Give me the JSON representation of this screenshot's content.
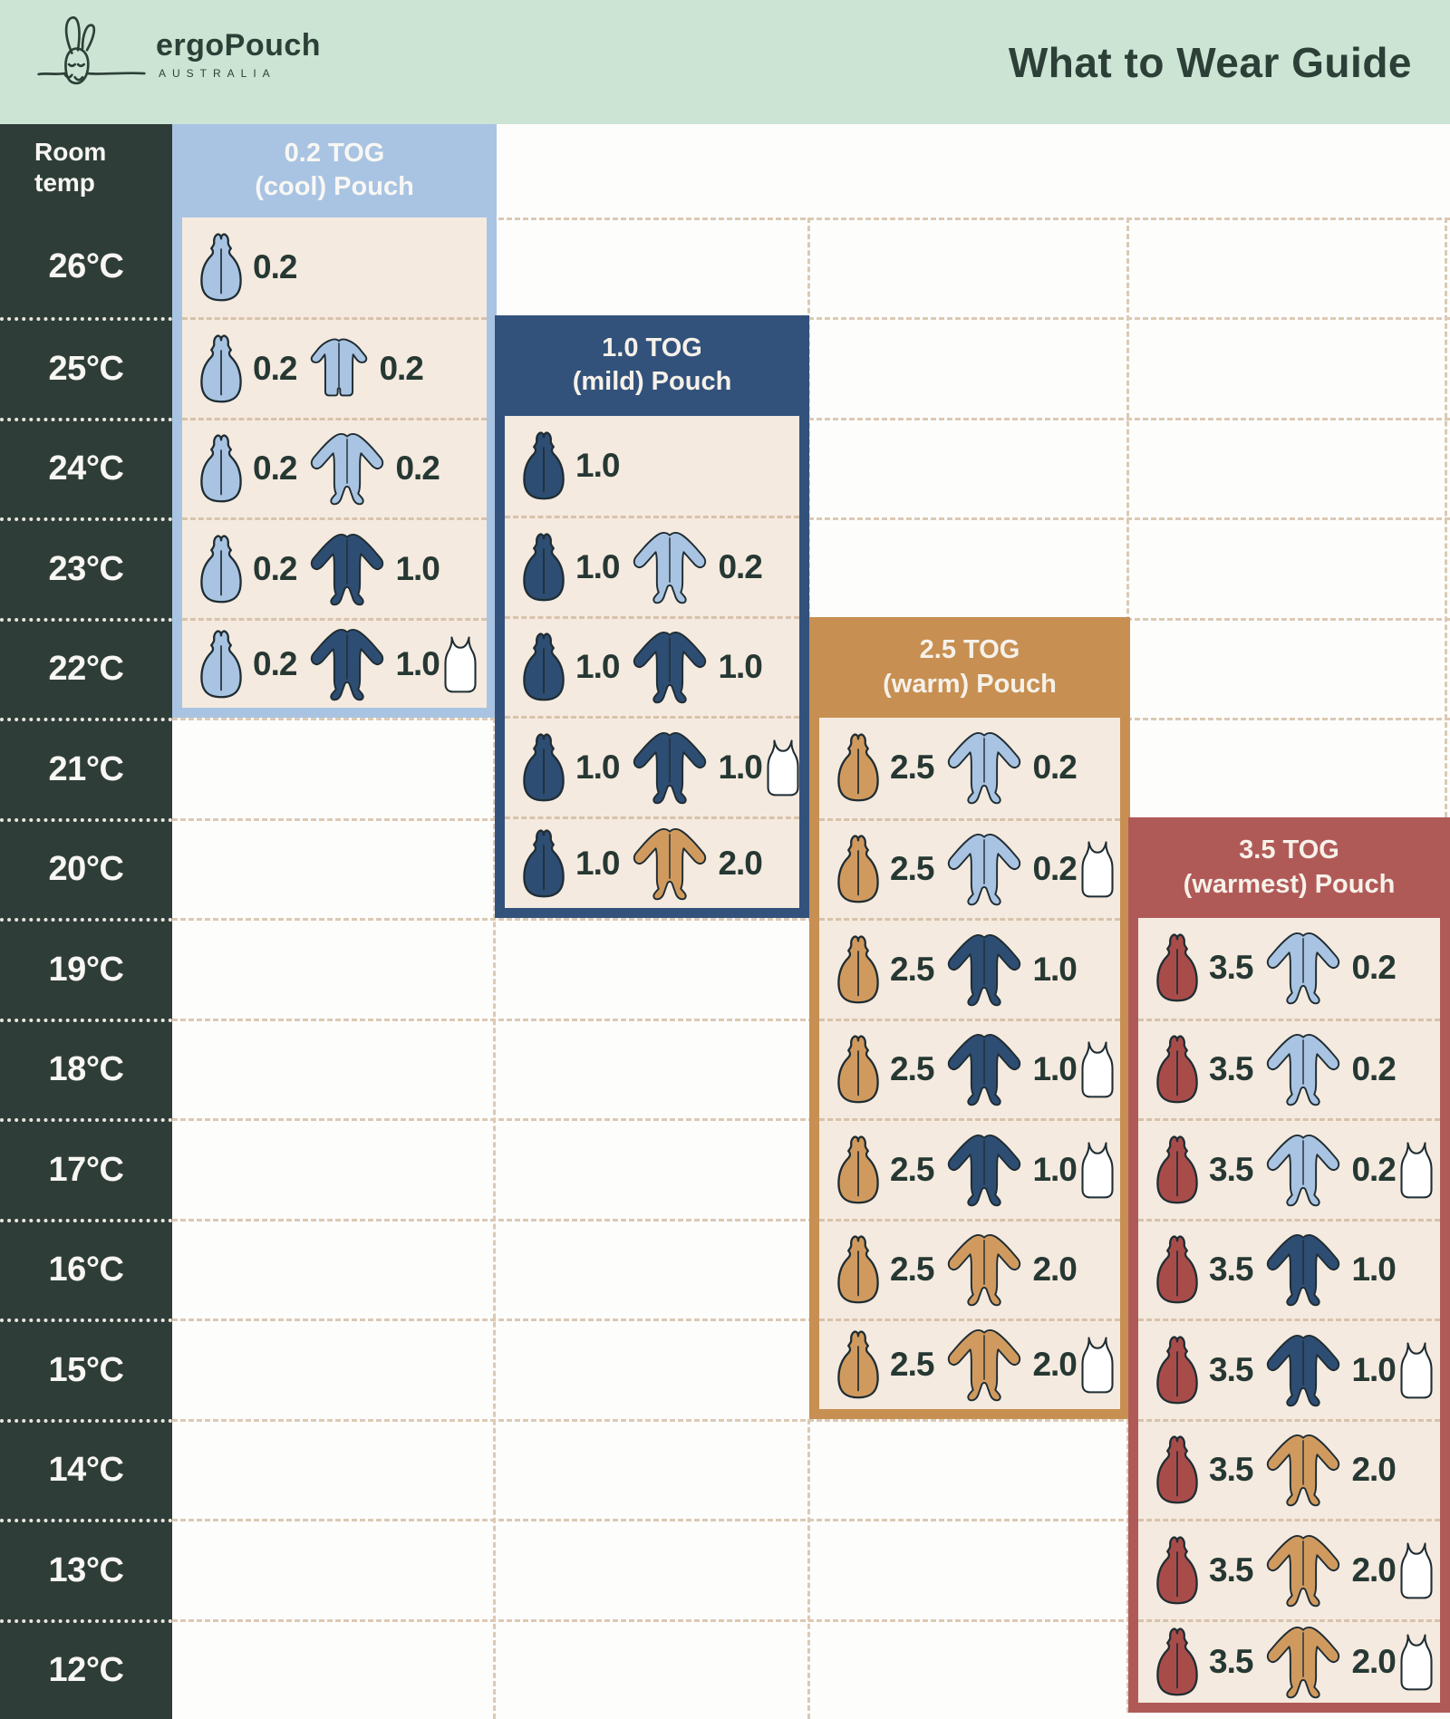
{
  "header": {
    "brand": "ergoPouch",
    "brand_sub": "AUSTRALIA",
    "title": "What to Wear Guide"
  },
  "colors": {
    "mint": "#cbe4d4",
    "dark_green": "#2c4037",
    "temp_bg": "#2f3d38",
    "cream": "#f5eadf",
    "page_bg": "#fdfdfc",
    "lightblue": "#a9c4e2",
    "navy": "#33527b",
    "navy_icon": "#2e4d73",
    "tan": "#c78f52",
    "tan_icon": "#d09a5f",
    "red": "#b05a58",
    "red_icon": "#a84c4a",
    "outline": "#1f2d33",
    "value": "#263833",
    "dash_cream": "#d7c2ab",
    "dash_bg": "#dcc9b4",
    "dash_dark": "#e9e6df",
    "header_text": "#f6f1e9",
    "temp_text": "#f7f6f2"
  },
  "chart_data": {
    "type": "table",
    "title": "What to Wear Guide",
    "row_header_line1": "Room",
    "row_header_line2": "temp",
    "temperatures": [
      "26°C",
      "25°C",
      "24°C",
      "23°C",
      "22°C",
      "21°C",
      "20°C",
      "19°C",
      "18°C",
      "17°C",
      "16°C",
      "15°C",
      "14°C",
      "13°C",
      "12°C"
    ],
    "columns": [
      {
        "label_line1": "0.2 TOG",
        "label_line2": "(cool) Pouch",
        "theme": "lightblue",
        "temp_range": [
          "26°C",
          "22°C"
        ],
        "rows": [
          {
            "temp": "26°C",
            "items": [
              {
                "type": "pouch",
                "color": "lightblue",
                "tog": "0.2"
              }
            ]
          },
          {
            "temp": "25°C",
            "items": [
              {
                "type": "pouch",
                "color": "lightblue",
                "tog": "0.2"
              },
              {
                "type": "romper",
                "color": "lightblue",
                "tog": "0.2"
              }
            ]
          },
          {
            "temp": "24°C",
            "items": [
              {
                "type": "pouch",
                "color": "lightblue",
                "tog": "0.2"
              },
              {
                "type": "onesie",
                "color": "lightblue",
                "tog": "0.2"
              }
            ]
          },
          {
            "temp": "23°C",
            "items": [
              {
                "type": "pouch",
                "color": "lightblue",
                "tog": "0.2"
              },
              {
                "type": "onesie",
                "color": "navy",
                "tog": "1.0"
              }
            ]
          },
          {
            "temp": "22°C",
            "items": [
              {
                "type": "pouch",
                "color": "lightblue",
                "tog": "0.2"
              },
              {
                "type": "onesie",
                "color": "navy",
                "tog": "1.0"
              },
              {
                "type": "singlet",
                "color": "white"
              }
            ]
          }
        ]
      },
      {
        "label_line1": "1.0 TOG",
        "label_line2": "(mild) Pouch",
        "theme": "navy",
        "temp_range": [
          "24°C",
          "20°C"
        ],
        "rows": [
          {
            "temp": "24°C",
            "items": [
              {
                "type": "pouch",
                "color": "navy",
                "tog": "1.0"
              }
            ]
          },
          {
            "temp": "23°C",
            "items": [
              {
                "type": "pouch",
                "color": "navy",
                "tog": "1.0"
              },
              {
                "type": "onesie",
                "color": "lightblue",
                "tog": "0.2"
              }
            ]
          },
          {
            "temp": "22°C",
            "items": [
              {
                "type": "pouch",
                "color": "navy",
                "tog": "1.0"
              },
              {
                "type": "onesie",
                "color": "navy",
                "tog": "1.0"
              }
            ]
          },
          {
            "temp": "21°C",
            "items": [
              {
                "type": "pouch",
                "color": "navy",
                "tog": "1.0"
              },
              {
                "type": "onesie",
                "color": "navy",
                "tog": "1.0"
              },
              {
                "type": "singlet",
                "color": "white"
              }
            ]
          },
          {
            "temp": "20°C",
            "items": [
              {
                "type": "pouch",
                "color": "navy",
                "tog": "1.0"
              },
              {
                "type": "onesie",
                "color": "tan",
                "tog": "2.0"
              }
            ]
          }
        ]
      },
      {
        "label_line1": "2.5 TOG",
        "label_line2": "(warm) Pouch",
        "theme": "tan",
        "temp_range": [
          "21°C",
          "15°C"
        ],
        "rows": [
          {
            "temp": "21°C",
            "items": [
              {
                "type": "pouch",
                "color": "tan",
                "tog": "2.5"
              },
              {
                "type": "onesie",
                "color": "lightblue",
                "tog": "0.2"
              }
            ]
          },
          {
            "temp": "20°C",
            "items": [
              {
                "type": "pouch",
                "color": "tan",
                "tog": "2.5"
              },
              {
                "type": "onesie",
                "color": "lightblue",
                "tog": "0.2"
              },
              {
                "type": "singlet",
                "color": "white"
              }
            ]
          },
          {
            "temp": "19°C",
            "items": [
              {
                "type": "pouch",
                "color": "tan",
                "tog": "2.5"
              },
              {
                "type": "onesie",
                "color": "navy",
                "tog": "1.0"
              }
            ]
          },
          {
            "temp": "18°C",
            "items": [
              {
                "type": "pouch",
                "color": "tan",
                "tog": "2.5"
              },
              {
                "type": "onesie",
                "color": "navy",
                "tog": "1.0"
              },
              {
                "type": "singlet",
                "color": "white"
              }
            ]
          },
          {
            "temp": "17°C",
            "items": [
              {
                "type": "pouch",
                "color": "tan",
                "tog": "2.5"
              },
              {
                "type": "onesie",
                "color": "navy",
                "tog": "1.0"
              },
              {
                "type": "singlet",
                "color": "white"
              }
            ]
          },
          {
            "temp": "16°C",
            "items": [
              {
                "type": "pouch",
                "color": "tan",
                "tog": "2.5"
              },
              {
                "type": "onesie",
                "color": "tan",
                "tog": "2.0"
              }
            ]
          },
          {
            "temp": "15°C",
            "items": [
              {
                "type": "pouch",
                "color": "tan",
                "tog": "2.5"
              },
              {
                "type": "onesie",
                "color": "tan",
                "tog": "2.0"
              },
              {
                "type": "singlet",
                "color": "white"
              }
            ]
          }
        ]
      },
      {
        "label_line1": "3.5 TOG",
        "label_line2": "(warmest) Pouch",
        "theme": "red",
        "temp_range": [
          "19°C",
          "12°C"
        ],
        "rows": [
          {
            "temp": "19°C",
            "items": [
              {
                "type": "pouch",
                "color": "red",
                "tog": "3.5"
              },
              {
                "type": "onesie",
                "color": "lightblue",
                "tog": "0.2"
              }
            ]
          },
          {
            "temp": "18°C",
            "items": [
              {
                "type": "pouch",
                "color": "red",
                "tog": "3.5"
              },
              {
                "type": "onesie",
                "color": "lightblue",
                "tog": "0.2"
              }
            ]
          },
          {
            "temp": "17°C",
            "items": [
              {
                "type": "pouch",
                "color": "red",
                "tog": "3.5"
              },
              {
                "type": "onesie",
                "color": "lightblue",
                "tog": "0.2"
              },
              {
                "type": "singlet",
                "color": "white"
              }
            ]
          },
          {
            "temp": "16°C",
            "items": [
              {
                "type": "pouch",
                "color": "red",
                "tog": "3.5"
              },
              {
                "type": "onesie",
                "color": "navy",
                "tog": "1.0"
              }
            ]
          },
          {
            "temp": "15°C",
            "items": [
              {
                "type": "pouch",
                "color": "red",
                "tog": "3.5"
              },
              {
                "type": "onesie",
                "color": "navy",
                "tog": "1.0"
              },
              {
                "type": "singlet",
                "color": "white"
              }
            ]
          },
          {
            "temp": "14°C",
            "items": [
              {
                "type": "pouch",
                "color": "red",
                "tog": "3.5"
              },
              {
                "type": "onesie",
                "color": "tan",
                "tog": "2.0"
              }
            ]
          },
          {
            "temp": "13°C",
            "items": [
              {
                "type": "pouch",
                "color": "red",
                "tog": "3.5"
              },
              {
                "type": "onesie",
                "color": "tan",
                "tog": "2.0"
              },
              {
                "type": "singlet",
                "color": "white"
              }
            ]
          },
          {
            "temp": "12°C",
            "items": [
              {
                "type": "pouch",
                "color": "red",
                "tog": "3.5"
              },
              {
                "type": "onesie",
                "color": "tan",
                "tog": "2.0"
              },
              {
                "type": "singlet",
                "color": "white"
              }
            ]
          }
        ]
      }
    ]
  }
}
